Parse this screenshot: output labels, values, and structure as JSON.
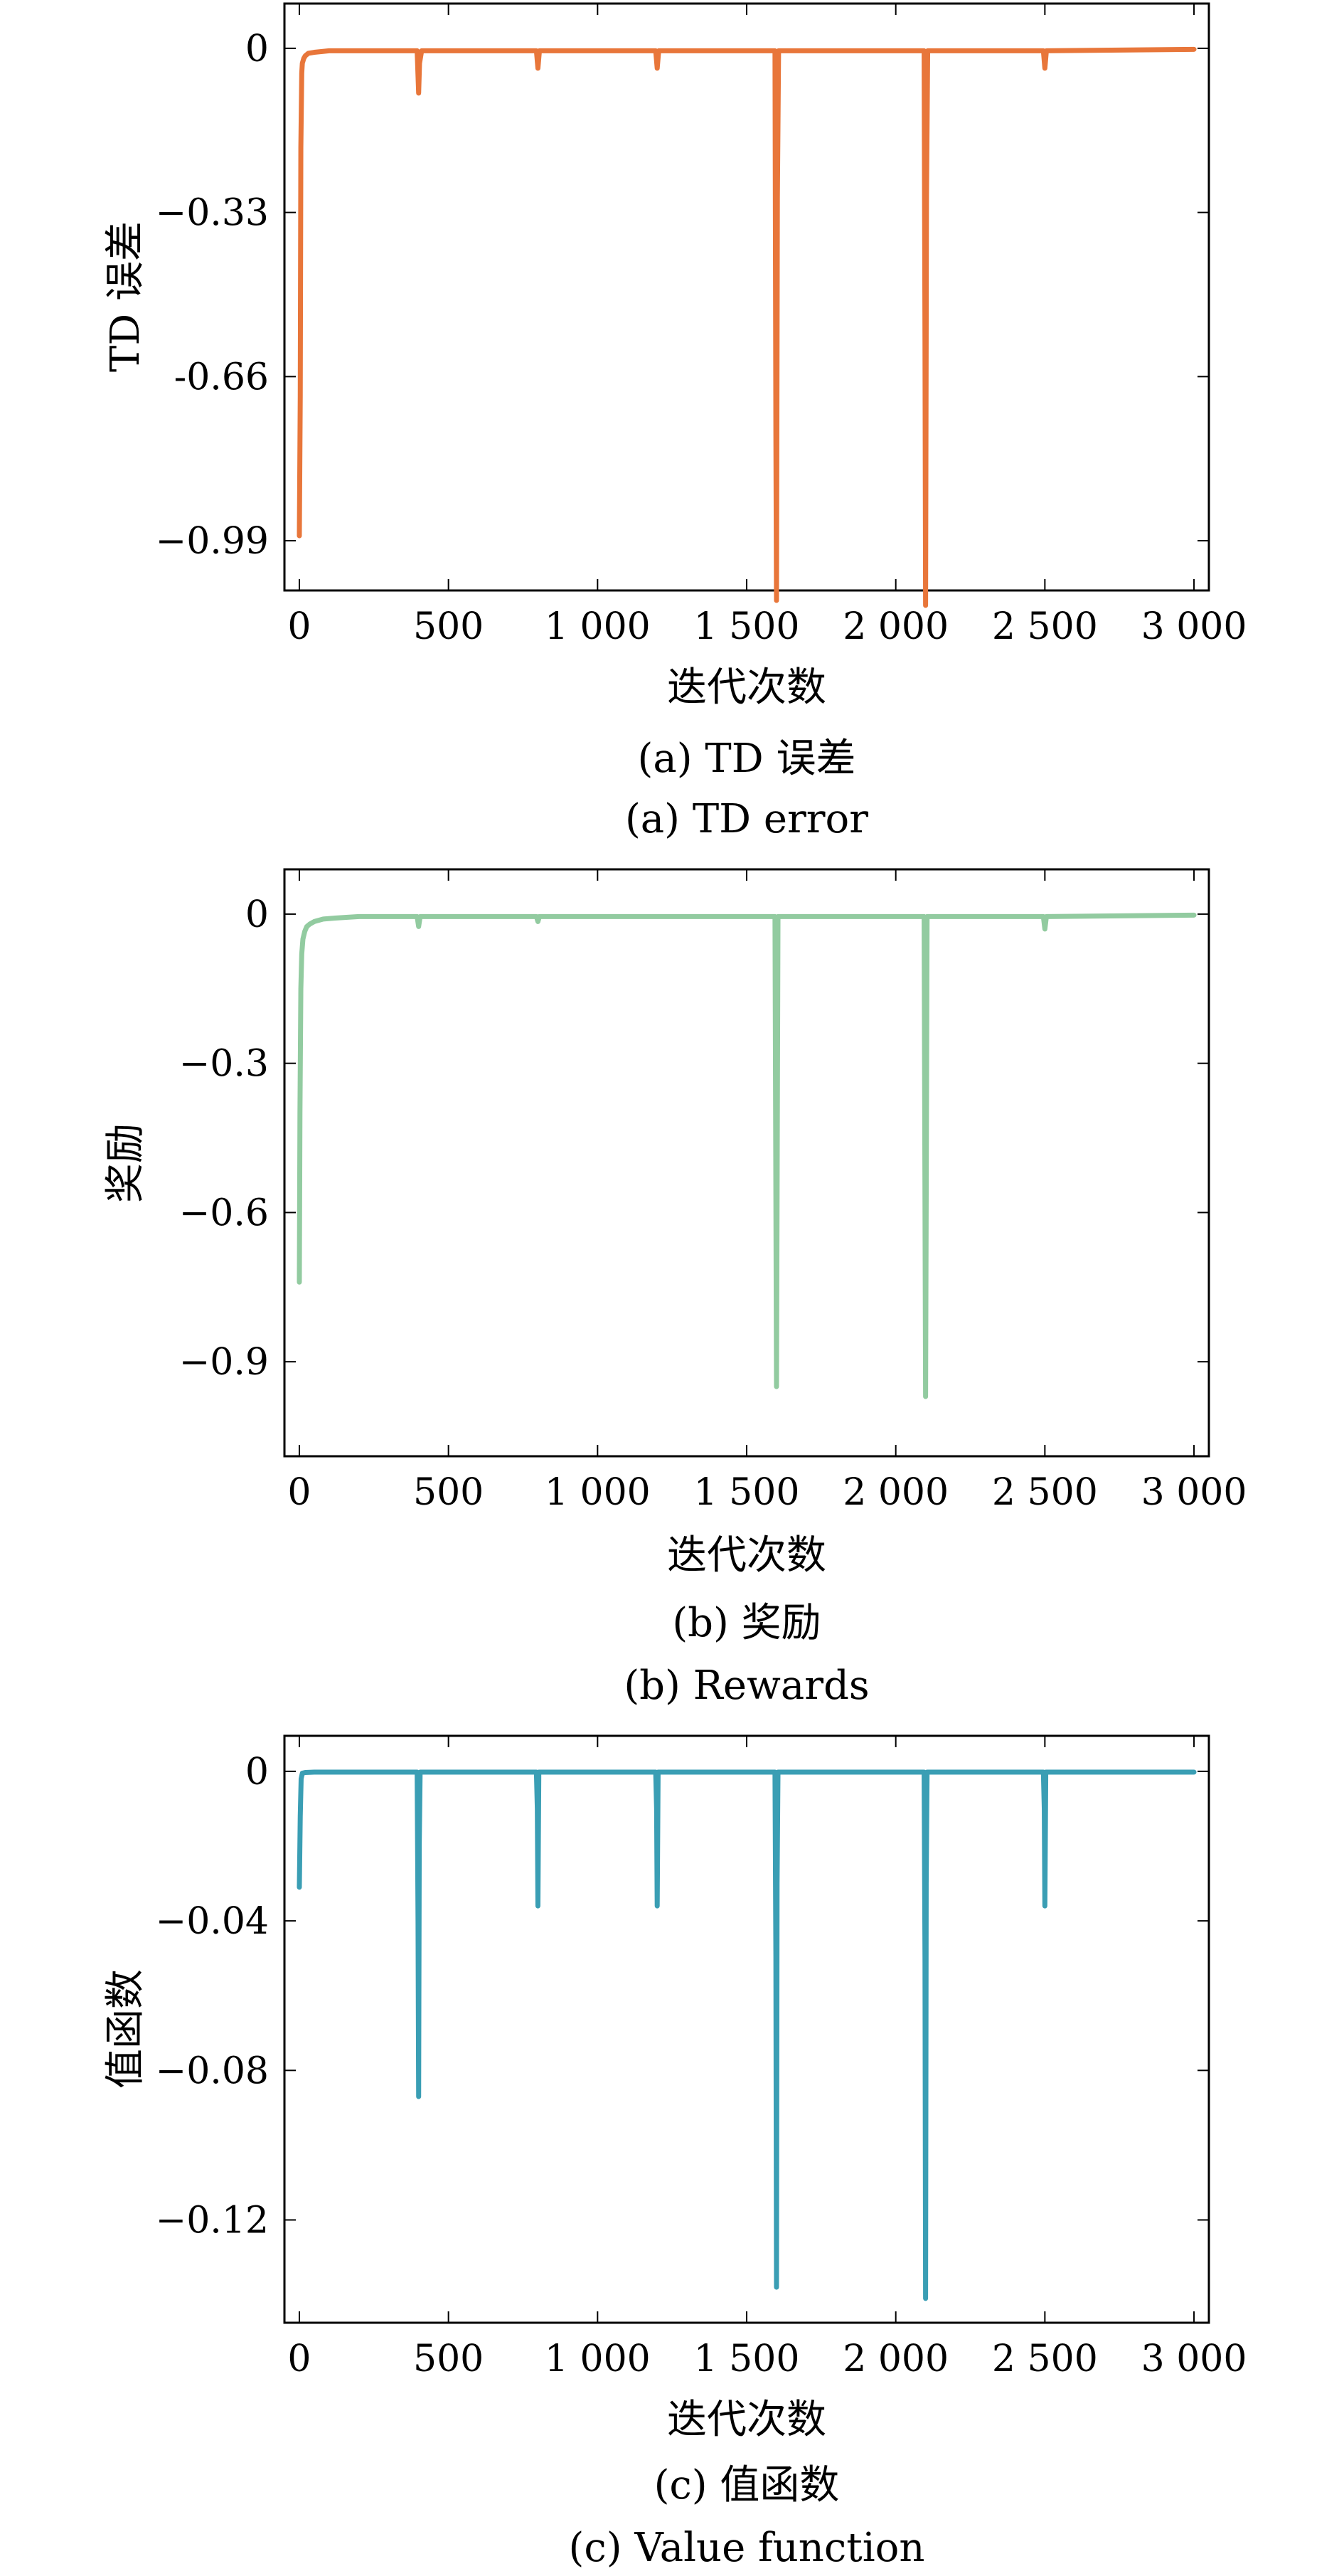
{
  "chart_data": [
    {
      "type": "line",
      "xlabel": "迭代次数",
      "ylabel": "TD 误差",
      "caption_cn": "(a) TD 误差",
      "caption_en": "(a) TD error",
      "color": "#e8763a",
      "xlim": [
        -50,
        3050
      ],
      "ylim": [
        -1.09,
        0.09
      ],
      "x_ticks": [
        0,
        500,
        1000,
        1500,
        2000,
        2500,
        3000
      ],
      "x_tick_labels": [
        "0",
        "500",
        "1 000",
        "1 500",
        "2 000",
        "2 500",
        "3 000"
      ],
      "y_ticks": [
        0,
        -0.33,
        -0.66,
        -0.99
      ],
      "y_tick_labels": [
        "0",
        "−0.33",
        "-0.66",
        "−0.99"
      ],
      "grid": false,
      "legend": "none",
      "series": [
        {
          "x": [
            0,
            3,
            5,
            8,
            10,
            15,
            20,
            30,
            50,
            100,
            395,
            400,
            403,
            410,
            795,
            800,
            805,
            1195,
            1200,
            1205,
            1595,
            1598,
            1600,
            1603,
            1607,
            2095,
            2098,
            2100,
            2103,
            2107,
            2495,
            2500,
            2505,
            3000
          ],
          "y": [
            -0.98,
            -0.7,
            -0.2,
            -0.05,
            -0.03,
            -0.02,
            -0.015,
            -0.01,
            -0.008,
            -0.005,
            -0.005,
            -0.09,
            -0.03,
            -0.005,
            -0.005,
            -0.04,
            -0.005,
            -0.005,
            -0.04,
            -0.005,
            -0.005,
            -0.78,
            -1.11,
            -0.3,
            -0.005,
            -0.005,
            -0.6,
            -1.12,
            -0.3,
            -0.005,
            -0.005,
            -0.04,
            -0.005,
            -0.002
          ]
        }
      ]
    },
    {
      "type": "line",
      "xlabel": "迭代次数",
      "ylabel": "奖励",
      "caption_cn": "(b) 奖励",
      "caption_en": "(b) Rewards",
      "color": "#92cba0",
      "xlim": [
        -50,
        3050
      ],
      "ylim": [
        -1.09,
        0.09
      ],
      "x_ticks": [
        0,
        500,
        1000,
        1500,
        2000,
        2500,
        3000
      ],
      "x_tick_labels": [
        "0",
        "500",
        "1 000",
        "1 500",
        "2 000",
        "2 500",
        "3 000"
      ],
      "y_ticks": [
        0,
        -0.3,
        -0.6,
        -0.9
      ],
      "y_tick_labels": [
        "0",
        "−0.3",
        "−0.6",
        "−0.9"
      ],
      "grid": false,
      "legend": "none",
      "series": [
        {
          "x": [
            0,
            2,
            5,
            8,
            12,
            18,
            25,
            35,
            50,
            80,
            120,
            200,
            395,
            400,
            405,
            795,
            800,
            805,
            1595,
            1600,
            1605,
            2095,
            2100,
            2105,
            2495,
            2500,
            2505,
            3000
          ],
          "y": [
            -0.74,
            -0.4,
            -0.15,
            -0.08,
            -0.05,
            -0.035,
            -0.025,
            -0.02,
            -0.015,
            -0.01,
            -0.008,
            -0.005,
            -0.005,
            -0.025,
            -0.005,
            -0.005,
            -0.015,
            -0.005,
            -0.005,
            -0.95,
            -0.005,
            -0.005,
            -0.97,
            -0.005,
            -0.005,
            -0.03,
            -0.005,
            -0.002
          ]
        }
      ]
    },
    {
      "type": "line",
      "xlabel": "迭代次数",
      "ylabel": "值函数",
      "caption_cn": "(c) 值函数",
      "caption_en": "(c) Value function",
      "color": "#3a9eb4",
      "xlim": [
        -50,
        3050
      ],
      "ylim": [
        -0.1475,
        0.0095
      ],
      "x_ticks": [
        0,
        500,
        1000,
        1500,
        2000,
        2500,
        3000
      ],
      "x_tick_labels": [
        "0",
        "500",
        "1 000",
        "1 500",
        "2 000",
        "2 500",
        "3 000"
      ],
      "y_ticks": [
        0,
        -0.04,
        -0.08,
        -0.12
      ],
      "y_tick_labels": [
        "0",
        "−0.04",
        "−0.08",
        "−0.12"
      ],
      "grid": false,
      "legend": "none",
      "series": [
        {
          "x": [
            0,
            3,
            6,
            10,
            20,
            50,
            395,
            398,
            400,
            402,
            405,
            795,
            798,
            800,
            803,
            1195,
            1198,
            1200,
            1203,
            1595,
            1598,
            1600,
            1602,
            1605,
            2095,
            2098,
            2100,
            2102,
            2105,
            2495,
            2498,
            2500,
            2503,
            3000
          ],
          "y": [
            -0.031,
            -0.012,
            -0.002,
            -0.0005,
            -0.0003,
            -0.0002,
            -0.0002,
            -0.04,
            -0.087,
            -0.02,
            -0.0002,
            -0.0002,
            -0.01,
            -0.036,
            -0.0002,
            -0.0002,
            -0.01,
            -0.036,
            -0.0002,
            -0.0002,
            -0.05,
            -0.138,
            -0.03,
            -0.0002,
            -0.0002,
            -0.05,
            -0.141,
            -0.03,
            -0.0002,
            -0.0002,
            -0.01,
            -0.036,
            -0.0002,
            -0.0002
          ]
        }
      ]
    }
  ]
}
